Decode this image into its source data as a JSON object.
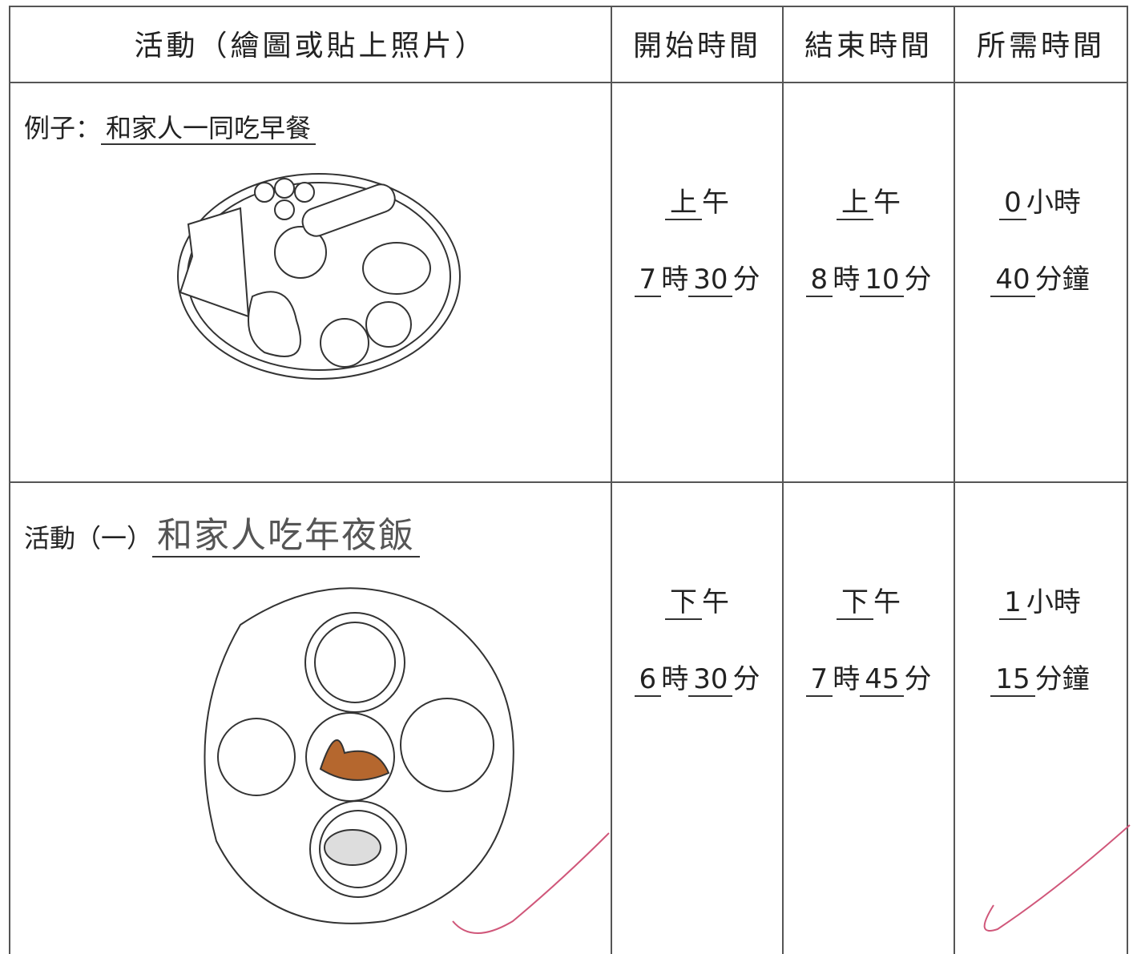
{
  "header": {
    "activity": "活動（繪圖或貼上照片）",
    "start": "開始時間",
    "end": "結束時間",
    "duration": "所需時間"
  },
  "rows": [
    {
      "label": "例子：",
      "activity": "和家人一同吃早餐",
      "start": {
        "period": "上",
        "period_suffix": "午",
        "hour": "7",
        "hour_unit": "時",
        "minute": "30",
        "minute_unit": "分"
      },
      "end": {
        "period": "上",
        "period_suffix": "午",
        "hour": "8",
        "hour_unit": "時",
        "minute": "10",
        "minute_unit": "分"
      },
      "duration": {
        "hours": "0",
        "hours_unit": "小時",
        "minutes": "40",
        "minutes_unit": "分鐘"
      }
    },
    {
      "label": "活動（一）",
      "activity": "和家人吃年夜飯",
      "start": {
        "period": "下",
        "period_suffix": "午",
        "hour": "6",
        "hour_unit": "時",
        "minute": "30",
        "minute_unit": "分"
      },
      "end": {
        "period": "下",
        "period_suffix": "午",
        "hour": "7",
        "hour_unit": "時",
        "minute": "45",
        "minute_unit": "分"
      },
      "duration": {
        "hours": "1",
        "hours_unit": "小時",
        "minutes": "15",
        "minutes_unit": "分鐘"
      }
    }
  ]
}
